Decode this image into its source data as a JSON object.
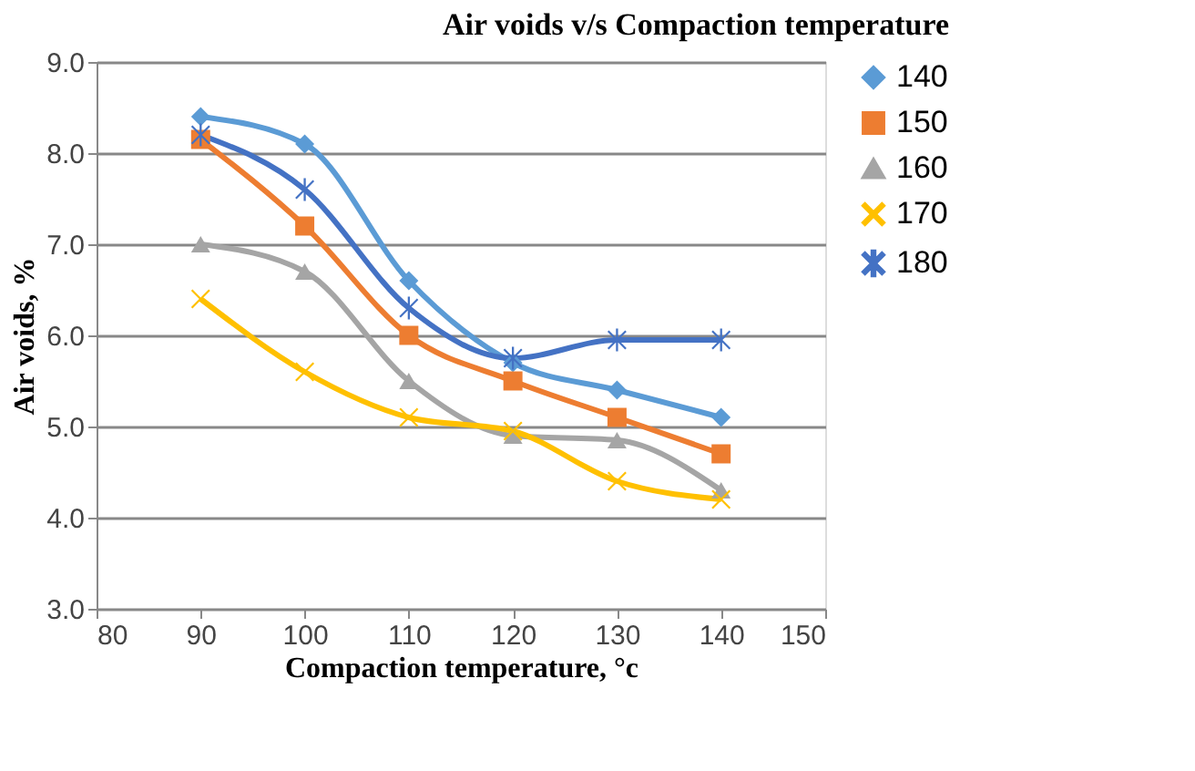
{
  "chart_data": {
    "type": "line",
    "title": "Air voids v/s Compaction temperature",
    "xlabel": "Compaction temperature, °c",
    "ylabel": "Air voids, %",
    "x": [
      90,
      100,
      110,
      120,
      130,
      140
    ],
    "xlim": [
      80,
      150
    ],
    "xticks": [
      80,
      90,
      100,
      110,
      120,
      130,
      140,
      150
    ],
    "ylim": [
      3.0,
      9.0
    ],
    "yticks": [
      {
        "value": 3,
        "label": "3.0"
      },
      {
        "value": 4,
        "label": "4.0"
      },
      {
        "value": 5,
        "label": "5.0"
      },
      {
        "value": 6,
        "label": "6.0"
      },
      {
        "value": 7,
        "label": "7.0"
      },
      {
        "value": 8,
        "label": "8.0"
      },
      {
        "value": 9,
        "label": "9.0"
      }
    ],
    "grid": "y",
    "legend": "right",
    "line_style": "solid",
    "series": [
      {
        "name": "140",
        "color": "#5b9bd5",
        "marker": "diamond",
        "values": [
          8.4,
          8.1,
          6.6,
          5.7,
          5.4,
          5.1
        ]
      },
      {
        "name": "150",
        "color": "#ed7d31",
        "marker": "square",
        "values": [
          8.15,
          7.2,
          6.0,
          5.5,
          5.1,
          4.7
        ]
      },
      {
        "name": "160",
        "color": "#a5a5a5",
        "marker": "triangle",
        "values": [
          7.0,
          6.7,
          5.5,
          4.9,
          4.85,
          4.3
        ]
      },
      {
        "name": "170",
        "color": "#ffc000",
        "marker": "cross",
        "values": [
          6.4,
          5.6,
          5.1,
          4.95,
          4.4,
          4.2
        ]
      },
      {
        "name": "180",
        "color": "#4472c4",
        "marker": "star",
        "values": [
          8.2,
          7.6,
          6.3,
          5.75,
          5.95,
          5.95
        ]
      }
    ]
  }
}
